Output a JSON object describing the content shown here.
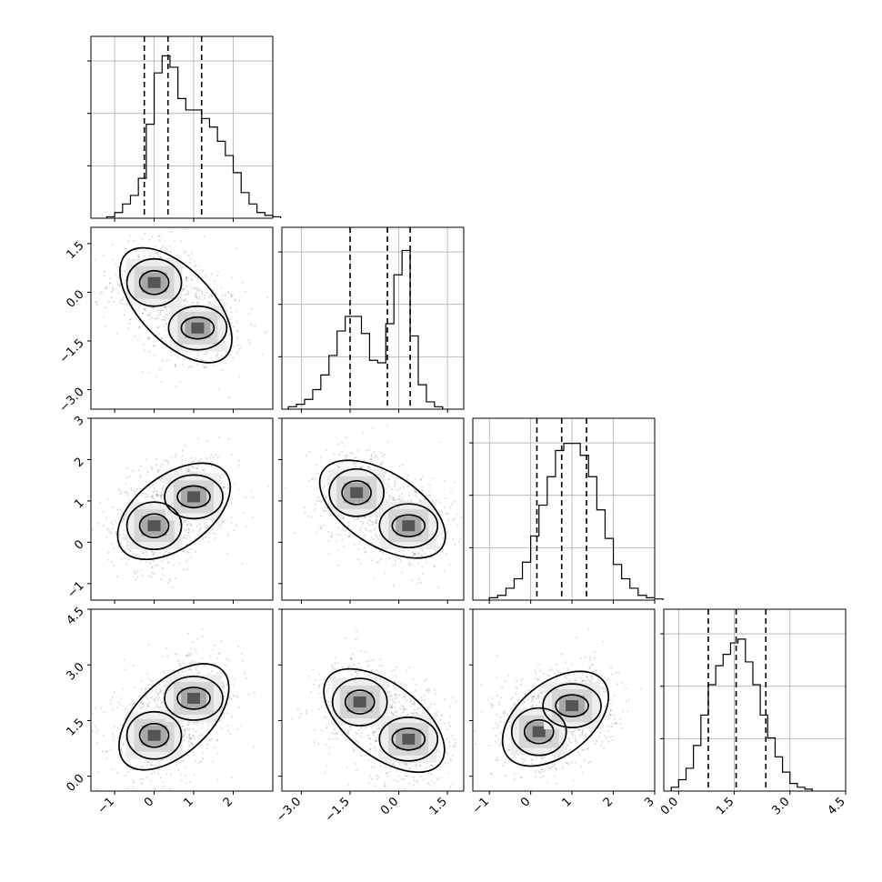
{
  "chart_data": {
    "type": "corner",
    "parameters": [
      {
        "id": "p0",
        "range": [
          -1.6,
          3.0
        ],
        "ticks": [
          -1,
          0,
          1,
          2
        ],
        "tick_labels": [
          "−1",
          "0",
          "1",
          "2"
        ],
        "quantiles": [
          -0.25,
          0.35,
          1.2
        ],
        "histogram": {
          "bin_start": -1.2,
          "bin_width": 0.2,
          "counts": [
            0.5,
            2,
            5,
            8,
            14,
            33,
            51,
            57,
            53,
            42,
            38,
            38,
            35,
            32,
            27,
            22,
            16,
            9,
            5,
            2,
            1,
            0.5
          ]
        },
        "marginal_hist_ylim": [
          0,
          60
        ]
      },
      {
        "id": "p1",
        "range": [
          -3.6,
          2.0
        ],
        "ticks": [
          -3.0,
          -1.5,
          0.0,
          1.5
        ],
        "tick_labels": [
          "−3.0",
          "−1.5",
          "0.0",
          "1.5"
        ],
        "quantiles": [
          -1.5,
          -0.35,
          0.35
        ],
        "histogram": {
          "bin_start": -3.4,
          "bin_width": 0.25,
          "counts": [
            1,
            2,
            4,
            8,
            14,
            22,
            32,
            38,
            38,
            31,
            20,
            19,
            35,
            55,
            65,
            30,
            10,
            3,
            1
          ]
        },
        "marginal_hist_ylim": [
          0,
          70
        ]
      },
      {
        "id": "p2",
        "range": [
          -1.4,
          3.0
        ],
        "ticks": [
          -1,
          0,
          1,
          2,
          3
        ],
        "tick_labels": [
          "−1",
          "0",
          "1",
          "2",
          "3"
        ],
        "quantiles": [
          0.15,
          0.75,
          1.35
        ],
        "histogram": {
          "bin_start": -1.0,
          "bin_width": 0.2,
          "counts": [
            1,
            2,
            5,
            9,
            16,
            27,
            40,
            52,
            63,
            66,
            66,
            61,
            52,
            38,
            26,
            15,
            9,
            5,
            2,
            1,
            0.5
          ]
        },
        "marginal_hist_ylim": [
          0,
          72
        ]
      },
      {
        "id": "p3",
        "range": [
          -0.4,
          4.5
        ],
        "ticks": [
          0.0,
          1.5,
          3.0,
          4.5
        ],
        "tick_labels": [
          "0.0",
          "1.5",
          "3.0",
          "4.5"
        ],
        "quantiles": [
          0.8,
          1.55,
          2.35
        ],
        "histogram": {
          "bin_start": -0.2,
          "bin_width": 0.2,
          "counts": [
            1,
            3,
            6,
            12,
            20,
            28,
            33,
            36,
            39,
            40,
            34,
            28,
            20,
            14,
            9,
            5,
            2,
            1,
            0.5
          ]
        },
        "marginal_hist_ylim": [
          0,
          45
        ]
      }
    ],
    "joint_distributions": [
      {
        "x": "p0",
        "y": "p1",
        "modes": [
          [
            0.0,
            0.3
          ],
          [
            1.1,
            -1.1
          ]
        ]
      },
      {
        "x": "p0",
        "y": "p2",
        "modes": [
          [
            0.0,
            0.4
          ],
          [
            1.0,
            1.1
          ]
        ]
      },
      {
        "x": "p1",
        "y": "p2",
        "modes": [
          [
            -1.3,
            1.2
          ],
          [
            0.3,
            0.4
          ]
        ]
      },
      {
        "x": "p0",
        "y": "p3",
        "modes": [
          [
            0.0,
            1.1
          ],
          [
            1.0,
            2.1
          ]
        ]
      },
      {
        "x": "p1",
        "y": "p3",
        "modes": [
          [
            -1.2,
            2.0
          ],
          [
            0.3,
            1.0
          ]
        ]
      },
      {
        "x": "p2",
        "y": "p3",
        "modes": [
          [
            0.2,
            1.2
          ],
          [
            1.0,
            1.9
          ]
        ]
      }
    ],
    "grid": true,
    "title": "",
    "axis_labels": []
  }
}
